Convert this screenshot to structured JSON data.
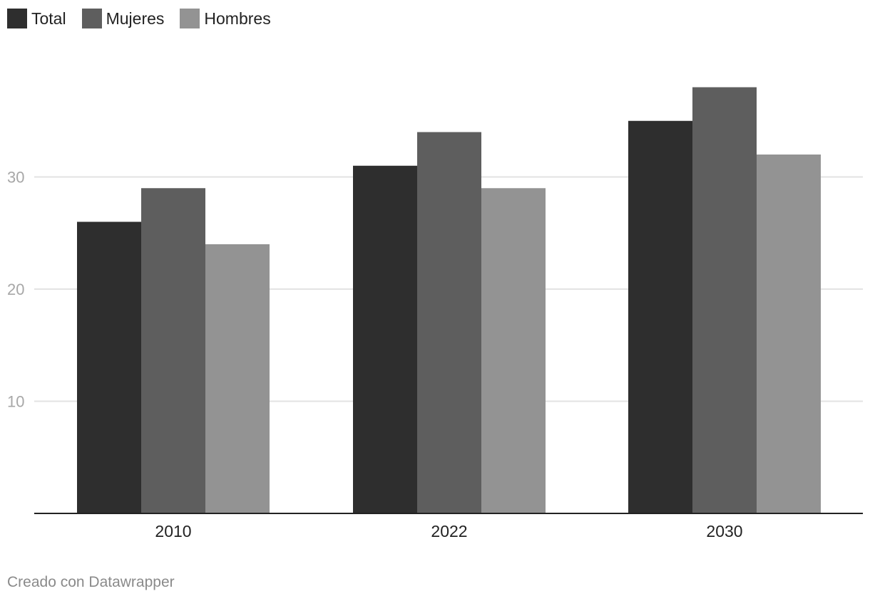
{
  "chart_data": {
    "type": "bar",
    "categories": [
      "2010",
      "2022",
      "2030"
    ],
    "series": [
      {
        "name": "Total",
        "values": [
          26,
          31,
          35
        ],
        "color": "#2e2e2e"
      },
      {
        "name": "Mujeres",
        "values": [
          29,
          34,
          38
        ],
        "color": "#5e5e5e"
      },
      {
        "name": "Hombres",
        "values": [
          24,
          29,
          32
        ],
        "color": "#939393"
      }
    ],
    "yticks": [
      10,
      20,
      30
    ],
    "ylim": [
      0,
      40
    ],
    "grid": true,
    "legend_position": "top-left",
    "title": "",
    "xlabel": "",
    "ylabel": ""
  },
  "footer": {
    "credit": "Creado con Datawrapper"
  }
}
